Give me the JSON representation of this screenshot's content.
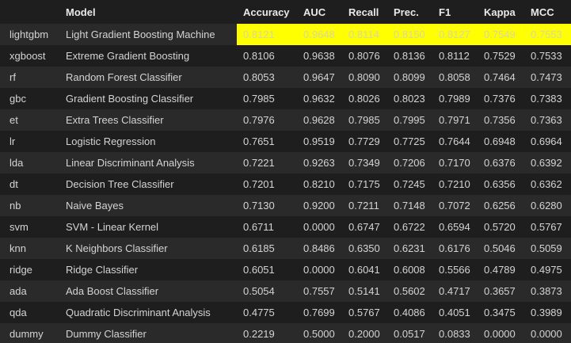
{
  "table": {
    "columns": [
      "",
      "Model",
      "Accuracy",
      "AUC",
      "Recall",
      "Prec.",
      "F1",
      "Kappa",
      "MCC"
    ],
    "highlight_color": "#ffff00",
    "rows": [
      {
        "index": "lightgbm",
        "model": "Light Gradient Boosting Machine",
        "accuracy": "0.8121",
        "auc": "0.9648",
        "recall": "0.8114",
        "prec": "0.8150",
        "f1": "0.8127",
        "kappa": "0.7549",
        "mcc": "0.7553",
        "highlighted": true
      },
      {
        "index": "xgboost",
        "model": "Extreme Gradient Boosting",
        "accuracy": "0.8106",
        "auc": "0.9638",
        "recall": "0.8076",
        "prec": "0.8136",
        "f1": "0.8112",
        "kappa": "0.7529",
        "mcc": "0.7533"
      },
      {
        "index": "rf",
        "model": "Random Forest Classifier",
        "accuracy": "0.8053",
        "auc": "0.9647",
        "recall": "0.8090",
        "prec": "0.8099",
        "f1": "0.8058",
        "kappa": "0.7464",
        "mcc": "0.7473"
      },
      {
        "index": "gbc",
        "model": "Gradient Boosting Classifier",
        "accuracy": "0.7985",
        "auc": "0.9632",
        "recall": "0.8026",
        "prec": "0.8023",
        "f1": "0.7989",
        "kappa": "0.7376",
        "mcc": "0.7383"
      },
      {
        "index": "et",
        "model": "Extra Trees Classifier",
        "accuracy": "0.7976",
        "auc": "0.9628",
        "recall": "0.7985",
        "prec": "0.7995",
        "f1": "0.7971",
        "kappa": "0.7356",
        "mcc": "0.7363"
      },
      {
        "index": "lr",
        "model": "Logistic Regression",
        "accuracy": "0.7651",
        "auc": "0.9519",
        "recall": "0.7729",
        "prec": "0.7725",
        "f1": "0.7644",
        "kappa": "0.6948",
        "mcc": "0.6964"
      },
      {
        "index": "lda",
        "model": "Linear Discriminant Analysis",
        "accuracy": "0.7221",
        "auc": "0.9263",
        "recall": "0.7349",
        "prec": "0.7206",
        "f1": "0.7170",
        "kappa": "0.6376",
        "mcc": "0.6392"
      },
      {
        "index": "dt",
        "model": "Decision Tree Classifier",
        "accuracy": "0.7201",
        "auc": "0.8210",
        "recall": "0.7175",
        "prec": "0.7245",
        "f1": "0.7210",
        "kappa": "0.6356",
        "mcc": "0.6362"
      },
      {
        "index": "nb",
        "model": "Naive Bayes",
        "accuracy": "0.7130",
        "auc": "0.9200",
        "recall": "0.7211",
        "prec": "0.7148",
        "f1": "0.7072",
        "kappa": "0.6256",
        "mcc": "0.6280"
      },
      {
        "index": "svm",
        "model": "SVM - Linear Kernel",
        "accuracy": "0.6711",
        "auc": "0.0000",
        "recall": "0.6747",
        "prec": "0.6722",
        "f1": "0.6594",
        "kappa": "0.5720",
        "mcc": "0.5767"
      },
      {
        "index": "knn",
        "model": "K Neighbors Classifier",
        "accuracy": "0.6185",
        "auc": "0.8486",
        "recall": "0.6350",
        "prec": "0.6231",
        "f1": "0.6176",
        "kappa": "0.5046",
        "mcc": "0.5059"
      },
      {
        "index": "ridge",
        "model": "Ridge Classifier",
        "accuracy": "0.6051",
        "auc": "0.0000",
        "recall": "0.6041",
        "prec": "0.6008",
        "f1": "0.5566",
        "kappa": "0.4789",
        "mcc": "0.4975"
      },
      {
        "index": "ada",
        "model": "Ada Boost Classifier",
        "accuracy": "0.5054",
        "auc": "0.7557",
        "recall": "0.5141",
        "prec": "0.5602",
        "f1": "0.4717",
        "kappa": "0.3657",
        "mcc": "0.3873"
      },
      {
        "index": "qda",
        "model": "Quadratic Discriminant Analysis",
        "accuracy": "0.4775",
        "auc": "0.7699",
        "recall": "0.5767",
        "prec": "0.4086",
        "f1": "0.4051",
        "kappa": "0.3475",
        "mcc": "0.3989"
      },
      {
        "index": "dummy",
        "model": "Dummy Classifier",
        "accuracy": "0.2219",
        "auc": "0.5000",
        "recall": "0.2000",
        "prec": "0.0517",
        "f1": "0.0833",
        "kappa": "0.0000",
        "mcc": "0.0000"
      }
    ]
  }
}
